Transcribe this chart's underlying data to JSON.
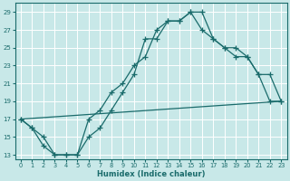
{
  "xlabel": "Humidex (Indice chaleur)",
  "bg_color": "#c8e8e8",
  "grid_color": "#ffffff",
  "line_color": "#1a6b6b",
  "xlim": [
    -0.5,
    23.5
  ],
  "ylim": [
    12.5,
    30.0
  ],
  "yticks": [
    13,
    15,
    17,
    19,
    21,
    23,
    25,
    27,
    29
  ],
  "xticks": [
    0,
    1,
    2,
    3,
    4,
    5,
    6,
    7,
    8,
    9,
    10,
    11,
    12,
    13,
    14,
    15,
    16,
    17,
    18,
    19,
    20,
    21,
    22,
    23
  ],
  "line1_x": [
    0,
    1,
    2,
    3,
    4,
    5,
    6,
    7,
    8,
    9,
    10,
    11,
    12,
    13,
    14,
    15,
    16,
    17,
    18,
    19,
    20,
    21,
    22,
    23
  ],
  "line1_y": [
    17,
    16,
    15,
    13,
    13,
    13,
    17,
    18,
    20,
    21,
    23,
    24,
    27,
    28,
    28,
    29,
    27,
    26,
    25,
    25,
    24,
    22,
    19,
    19
  ],
  "line2_x": [
    0,
    1,
    2,
    3,
    4,
    5,
    6,
    7,
    8,
    9,
    10,
    11,
    12,
    13,
    14,
    15,
    16,
    17,
    18,
    19,
    20,
    21,
    22,
    23
  ],
  "line2_y": [
    17,
    16,
    14,
    13,
    13,
    13,
    15,
    16,
    18,
    20,
    22,
    26,
    26,
    28,
    28,
    29,
    29,
    26,
    25,
    24,
    24,
    22,
    22,
    19
  ],
  "line3_x": [
    0,
    23
  ],
  "line3_y": [
    17,
    19
  ]
}
